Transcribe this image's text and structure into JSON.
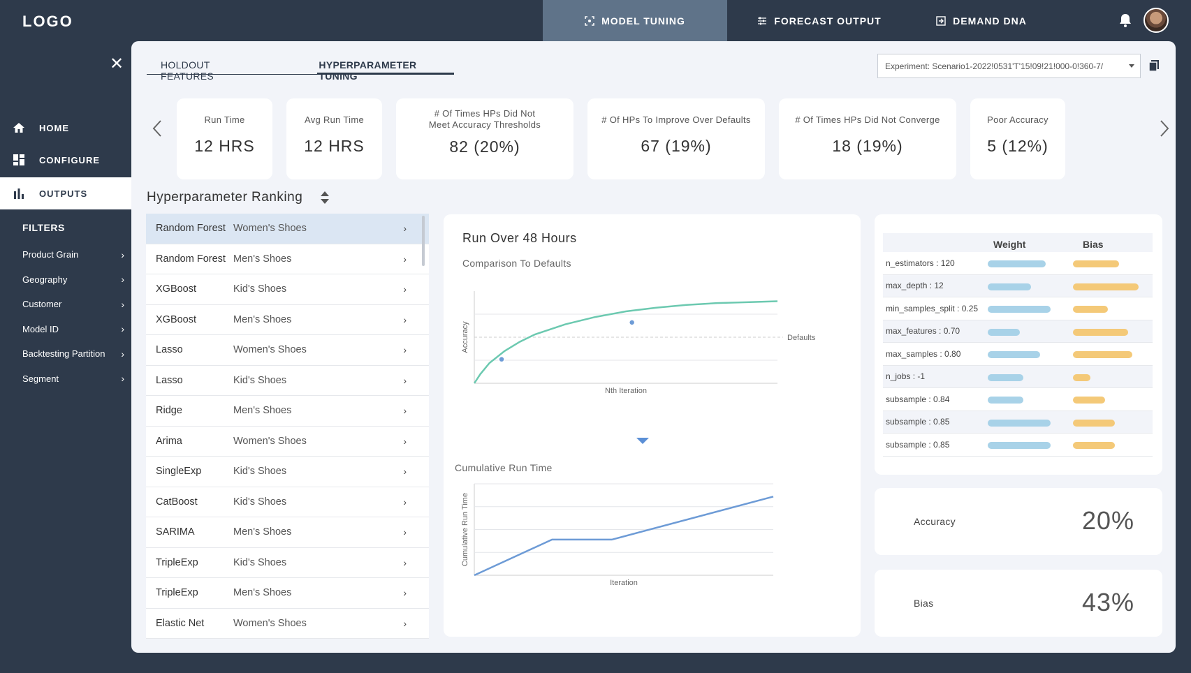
{
  "app": {
    "logo": "LOGO"
  },
  "top_nav": [
    {
      "label": "MODEL TUNING",
      "active": true,
      "icon": "focus-icon"
    },
    {
      "label": "FORECAST OUTPUT",
      "active": false,
      "icon": "sliders-icon"
    },
    {
      "label": "DEMAND DNA",
      "active": false,
      "icon": "exit-icon"
    }
  ],
  "sidebar": {
    "nav": [
      {
        "label": "HOME",
        "icon": "home-icon"
      },
      {
        "label": "CONFIGURE",
        "icon": "grid-icon"
      },
      {
        "label": "OUTPUTS",
        "icon": "bar-chart-icon",
        "active": true
      }
    ],
    "filters_title": "FILTERS",
    "filters": [
      "Product Grain",
      "Geography",
      "Customer",
      "Model ID",
      "Backtesting Partition",
      "Segment"
    ]
  },
  "subtabs": [
    {
      "label": "HOLDOUT FEATURES",
      "active": false
    },
    {
      "label": "HYPERPARAMETER TUNING",
      "active": true
    }
  ],
  "experiment": {
    "value": "Experiment: Scenario1-2022!0531'T'15!09!21!000-0!360-7/"
  },
  "kpis": [
    {
      "label": "Run Time",
      "value": "12 HRS"
    },
    {
      "label": "Avg Run Time",
      "value": "12 HRS"
    },
    {
      "label": "# Of Times HPs Did Not Meet Accuracy Thresholds",
      "value": "82 (20%)"
    },
    {
      "label": "# Of HPs To Improve Over Defaults",
      "value": "67 (19%)"
    },
    {
      "label": "# Of Times HPs Did Not Converge",
      "value": "18 (19%)"
    },
    {
      "label": "Poor Accuracy",
      "value": "5 (12%)"
    }
  ],
  "ranking": {
    "title": "Hyperparameter Ranking",
    "rows": [
      {
        "model": "Random Forest",
        "segment": "Women's Shoes"
      },
      {
        "model": "Random Forest",
        "segment": "Men's Shoes"
      },
      {
        "model": "XGBoost",
        "segment": "Kid's Shoes"
      },
      {
        "model": "XGBoost",
        "segment": "Men's Shoes"
      },
      {
        "model": "Lasso",
        "segment": "Women's Shoes"
      },
      {
        "model": "Lasso",
        "segment": "Kid's Shoes"
      },
      {
        "model": "Ridge",
        "segment": "Men's Shoes"
      },
      {
        "model": "Arima",
        "segment": "Women's Shoes"
      },
      {
        "model": "SingleExp",
        "segment": "Kid's Shoes"
      },
      {
        "model": "CatBoost",
        "segment": "Kid's Shoes"
      },
      {
        "model": "SARIMA",
        "segment": "Men's Shoes"
      },
      {
        "model": "TripleExp",
        "segment": "Kid's Shoes"
      },
      {
        "model": "TripleExp",
        "segment": "Men's Shoes"
      },
      {
        "model": "Elastic Net",
        "segment": "Women's Shoes"
      }
    ]
  },
  "run_card": {
    "title": "Run Over 48 Hours",
    "subtitle": "Comparison To Defaults",
    "cumulative_title": "Cumulative Run Time"
  },
  "chart_data": [
    {
      "type": "line",
      "title": "Comparison To Defaults",
      "xlabel": "Nth Iteration",
      "ylabel": "Accuracy",
      "reference_line": {
        "label": "Defaults",
        "y": 0.5
      },
      "x": [
        0,
        0.02,
        0.05,
        0.1,
        0.15,
        0.2,
        0.3,
        0.4,
        0.5,
        0.6,
        0.7,
        0.8,
        0.9,
        1.0
      ],
      "y": [
        0.0,
        0.1,
        0.22,
        0.35,
        0.45,
        0.53,
        0.64,
        0.72,
        0.78,
        0.82,
        0.85,
        0.87,
        0.88,
        0.89
      ],
      "markers": [
        {
          "x": 0.09,
          "y": 0.26
        },
        {
          "x": 0.52,
          "y": 0.66
        }
      ],
      "color": "#6cc9b0"
    },
    {
      "type": "line",
      "title": "Cumulative Run Time",
      "xlabel": "Iteration",
      "ylabel": "Cumulative Run Time",
      "x": [
        0,
        0.26,
        0.46,
        1.0
      ],
      "y": [
        0.0,
        0.39,
        0.39,
        0.86
      ],
      "color": "#6d9bd6"
    }
  ],
  "weight_bias": {
    "headers": {
      "weight": "Weight",
      "bias": "Bias"
    },
    "rows": [
      {
        "param": "n_estimators : 120",
        "weight": 0.75,
        "bias": 0.55
      },
      {
        "param": "max_depth : 12",
        "weight": 0.56,
        "bias": 0.78
      },
      {
        "param": "min_samples_split : 0.25",
        "weight": 0.82,
        "bias": 0.42
      },
      {
        "param": "max_features : 0.70",
        "weight": 0.42,
        "bias": 0.66
      },
      {
        "param": "max_samples : 0.80",
        "weight": 0.68,
        "bias": 0.71
      },
      {
        "param": "n_jobs : -1",
        "weight": 0.46,
        "bias": 0.21
      },
      {
        "param": "subsample : 0.84",
        "weight": 0.46,
        "bias": 0.38
      },
      {
        "param": "subsample : 0.85",
        "weight": 0.82,
        "bias": 0.5
      },
      {
        "param": "subsample : 0.85",
        "weight": 0.82,
        "bias": 0.5
      }
    ]
  },
  "metrics": [
    {
      "label": "Accuracy",
      "value": "20%"
    },
    {
      "label": "Bias",
      "value": "43%"
    }
  ]
}
